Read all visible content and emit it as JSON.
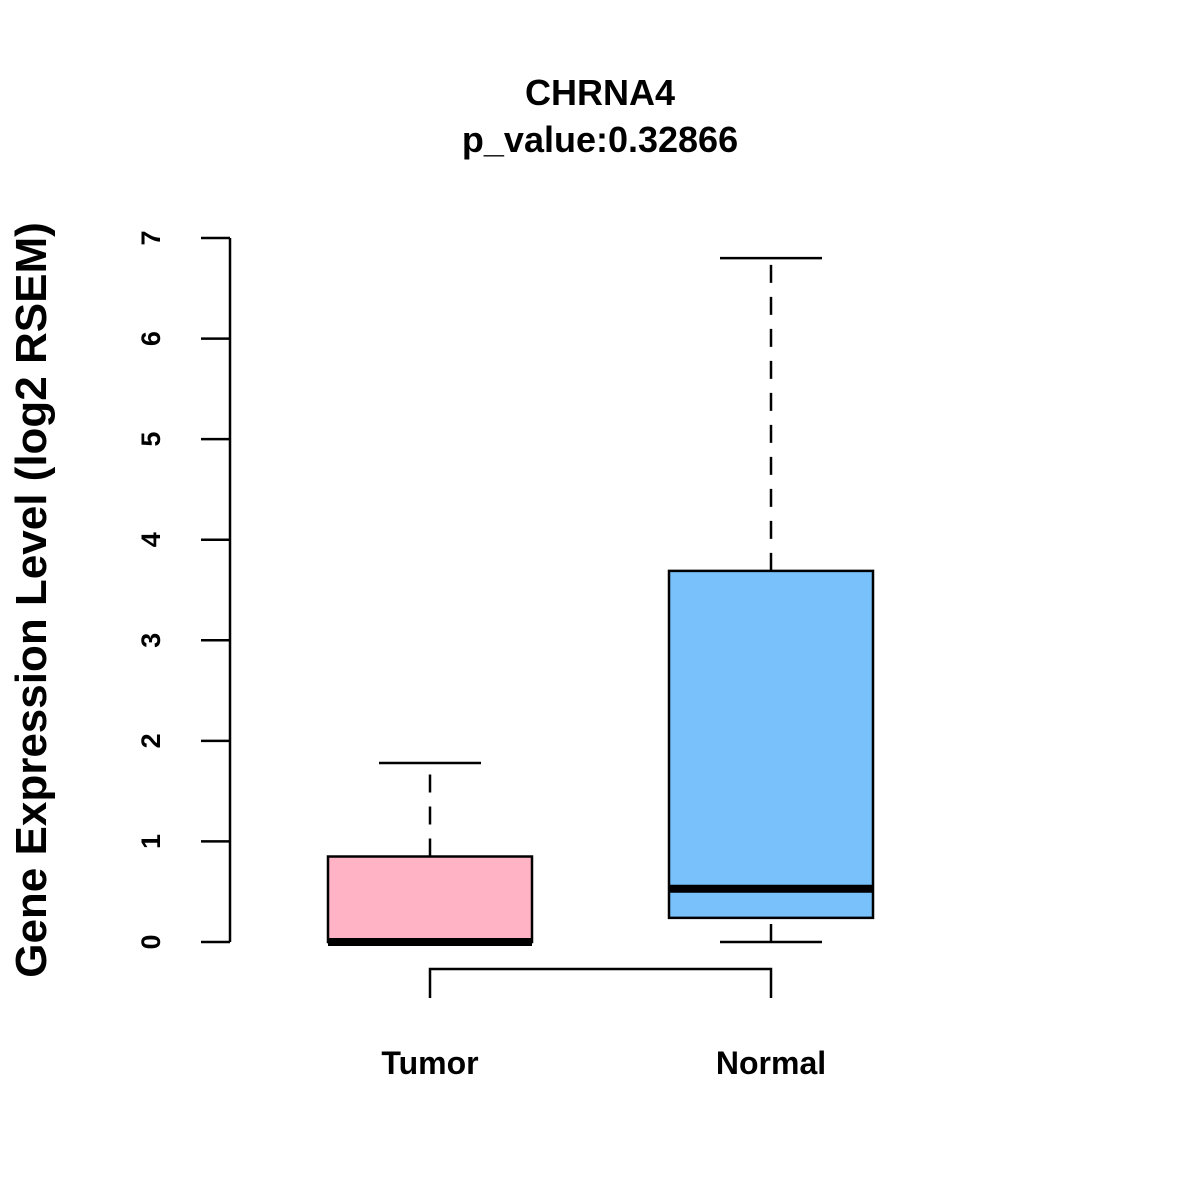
{
  "chart_data": {
    "type": "box",
    "title": "CHRNA4",
    "subtitle": "p_value:0.32866",
    "ylabel": "Gene Expression Level (log2 RSEM)",
    "xlabel": "",
    "ylim": [
      0,
      7
    ],
    "yticks": [
      "0",
      "1",
      "2",
      "3",
      "4",
      "5",
      "6",
      "7"
    ],
    "grid": false,
    "categories": [
      "Tumor",
      "Normal"
    ],
    "boxes": [
      {
        "name": "Tumor",
        "min": 0.0,
        "q1": 0.0,
        "median": 0.0,
        "q3": 0.85,
        "max": 1.78,
        "fill": "#FFB3C4"
      },
      {
        "name": "Normal",
        "min": 0.0,
        "q1": 0.24,
        "median": 0.53,
        "q3": 3.69,
        "max": 6.8,
        "fill": "#78C1FA"
      }
    ],
    "comparison_bracket": [
      "Tumor",
      "Normal"
    ]
  }
}
